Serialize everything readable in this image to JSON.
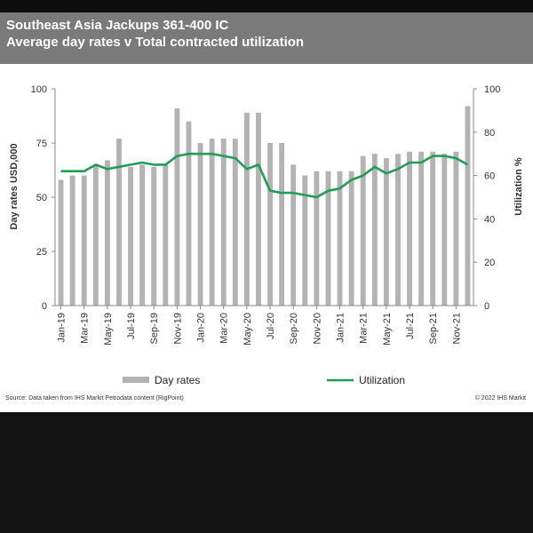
{
  "title": "Southeast Asia Jackups 361-400 IC",
  "subtitle": "Average day rates v Total contracted utilization",
  "source": "Source:  Data taken from IHS Markit Petrodata content (RigPoint)",
  "copyright": "© 2022  IHS Markit",
  "colors": {
    "header_bg": "#7a7a7a",
    "bars": "#b3b3b3",
    "line": "#1f9e55"
  },
  "chart_data": {
    "type": "bar",
    "title": "Southeast Asia Jackups 361-400 IC",
    "subtitle": "Average day rates v Total contracted utilization",
    "ylabel": "Day rates USD,000",
    "y2label": "Utilization %",
    "ylim": [
      0,
      100
    ],
    "y2lim": [
      0,
      100
    ],
    "yticks": [
      "0",
      "25",
      "50",
      "75",
      "100"
    ],
    "y2ticks": [
      "0",
      "20",
      "40",
      "60",
      "80",
      "100"
    ],
    "grid": false,
    "legend_position": "bottom",
    "x": [
      "Jan-19",
      "Feb-19",
      "Mar-19",
      "Apr-19",
      "May-19",
      "Jun-19",
      "Jul-19",
      "Aug-19",
      "Sep-19",
      "Oct-19",
      "Nov-19",
      "Dec-19",
      "Jan-20",
      "Feb-20",
      "Mar-20",
      "Apr-20",
      "May-20",
      "Jun-20",
      "Jul-20",
      "Aug-20",
      "Sep-20",
      "Oct-20",
      "Nov-20",
      "Dec-20",
      "Jan-21",
      "Feb-21",
      "Mar-21",
      "Apr-21",
      "May-21",
      "Jun-21",
      "Jul-21",
      "Aug-21",
      "Sep-21",
      "Oct-21",
      "Nov-21",
      "Dec-21"
    ],
    "xtick_labels": [
      "Jan-19",
      "Mar-19",
      "May-19",
      "Jul-19",
      "Sep-19",
      "Nov-19",
      "Jan-20",
      "Mar-20",
      "May-20",
      "Jul-20",
      "Sep-20",
      "Nov-20",
      "Jan-21",
      "Mar-21",
      "May-21",
      "Jul-21",
      "Sep-21",
      "Nov-21"
    ],
    "series": [
      {
        "name": "Day rates",
        "type": "bar",
        "axis": "left",
        "values": [
          58,
          60,
          60,
          65,
          67,
          77,
          64,
          65,
          64,
          65,
          91,
          85,
          75,
          77,
          77,
          77,
          89,
          89,
          75,
          75,
          65,
          60,
          62,
          62,
          62,
          62,
          69,
          70,
          68,
          70,
          71,
          71,
          71,
          70,
          71,
          92
        ]
      },
      {
        "name": "Utilization",
        "type": "line",
        "axis": "right",
        "values": [
          62,
          62,
          62,
          65,
          63,
          64,
          65,
          66,
          65,
          65,
          69,
          70,
          70,
          70,
          69,
          68,
          63,
          65,
          53,
          52,
          52,
          51,
          50,
          53,
          54,
          58,
          60,
          64,
          61,
          63,
          66,
          66,
          69,
          69,
          68,
          65
        ]
      }
    ]
  },
  "legend": {
    "bars_label": "Day rates",
    "line_label": "Utilization"
  }
}
